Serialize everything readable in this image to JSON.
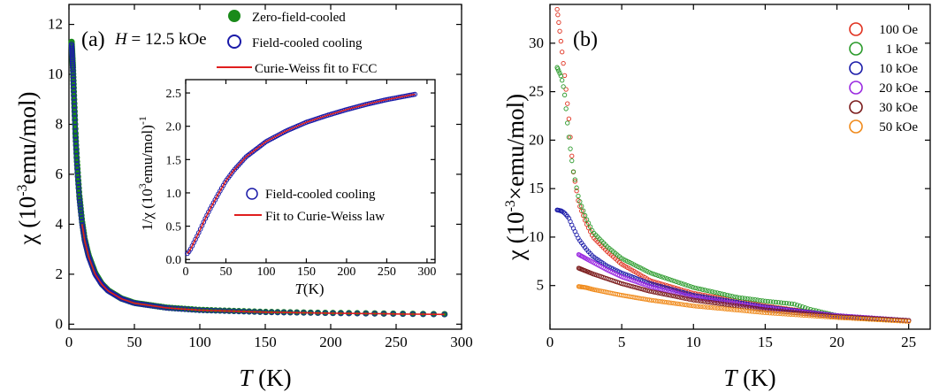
{
  "chart_data": [
    {
      "type": "scatter",
      "panel_label": "(a)",
      "annotation": "H = 12.5 kOe",
      "xlabel": "T (K)",
      "ylabel": "χ (10-3emu/mol)",
      "xlim": [
        0,
        300
      ],
      "ylim": [
        -0.2,
        12.8
      ],
      "xticks": [
        "0",
        "50",
        "100",
        "150",
        "200",
        "250",
        "300"
      ],
      "yticks": [
        "0",
        "2",
        "4",
        "6",
        "8",
        "10",
        "12"
      ],
      "legend_position": "top-right",
      "series": [
        {
          "name": "Zero-field-cooled",
          "marker": "filled-circle",
          "color": "#1a8a1a",
          "x": [
            2,
            3,
            4,
            5,
            6,
            7,
            8,
            10,
            12,
            15,
            20,
            25,
            30,
            40,
            50,
            75,
            100,
            150,
            200,
            250,
            287
          ],
          "y": [
            11.3,
            10.3,
            8.9,
            7.6,
            6.6,
            5.8,
            5.1,
            4.1,
            3.4,
            2.75,
            2.05,
            1.62,
            1.35,
            1.03,
            0.85,
            0.66,
            0.57,
            0.49,
            0.45,
            0.42,
            0.4
          ]
        },
        {
          "name": "Field-cooled cooling",
          "marker": "open-circle",
          "color": "#1a1aa8",
          "x": [
            2,
            3,
            4,
            5,
            6,
            7,
            8,
            10,
            12,
            15,
            20,
            25,
            30,
            40,
            50,
            75,
            100,
            150,
            200,
            250,
            287
          ],
          "y": [
            11.2,
            10.2,
            8.8,
            7.5,
            6.5,
            5.7,
            5.0,
            4.0,
            3.35,
            2.7,
            2.0,
            1.6,
            1.33,
            1.02,
            0.84,
            0.65,
            0.56,
            0.48,
            0.44,
            0.41,
            0.39
          ]
        },
        {
          "name": "Curie-Weiss fit to FCC",
          "marker": "line",
          "color": "#e01e1e",
          "x": [
            10,
            12,
            15,
            20,
            25,
            30,
            40,
            50,
            75,
            100,
            150,
            200,
            250,
            287
          ],
          "y": [
            4.0,
            3.35,
            2.7,
            2.0,
            1.6,
            1.33,
            1.02,
            0.84,
            0.65,
            0.56,
            0.48,
            0.44,
            0.41,
            0.39
          ]
        }
      ],
      "inset": {
        "type": "scatter",
        "xlabel": "T(K)",
        "ylabel": "1/χ (103emu/mol)-1",
        "xlim": [
          0,
          310
        ],
        "ylim": [
          -0.05,
          2.7
        ],
        "xticks": [
          "0",
          "50",
          "100",
          "150",
          "200",
          "250",
          "300"
        ],
        "yticks": [
          "0.0",
          "0.5",
          "1.0",
          "1.5",
          "2.0",
          "2.5"
        ],
        "legend_position": "bottom-right",
        "series": [
          {
            "name": "Field-cooled cooling",
            "marker": "open-circle",
            "color": "#1a1aa8",
            "x": [
              2,
              5,
              10,
              15,
              20,
              25,
              30,
              40,
              50,
              60,
              75,
              100,
              125,
              150,
              175,
              200,
              225,
              250,
              285
            ],
            "y": [
              0.09,
              0.13,
              0.25,
              0.37,
              0.5,
              0.63,
              0.75,
              0.97,
              1.18,
              1.34,
              1.54,
              1.77,
              1.93,
              2.06,
              2.16,
              2.25,
              2.33,
              2.4,
              2.48
            ]
          },
          {
            "name": "Fit to Curie-Weiss law",
            "marker": "line",
            "color": "#e01e1e",
            "x": [
              2,
              5,
              10,
              15,
              20,
              25,
              30,
              40,
              50,
              60,
              75,
              100,
              125,
              150,
              175,
              200,
              225,
              250,
              285
            ],
            "y": [
              0.09,
              0.13,
              0.25,
              0.37,
              0.5,
              0.63,
              0.75,
              0.97,
              1.18,
              1.34,
              1.54,
              1.77,
              1.93,
              2.06,
              2.16,
              2.25,
              2.33,
              2.4,
              2.48
            ]
          }
        ]
      }
    },
    {
      "type": "scatter",
      "panel_label": "(b)",
      "xlabel": "T (K)",
      "ylabel": "χ (10-3×emu/mol)",
      "xlim": [
        0,
        26.5
      ],
      "ylim": [
        0.5,
        34
      ],
      "xticks": [
        "0",
        "5",
        "10",
        "15",
        "20",
        "25"
      ],
      "yticks": [
        "5",
        "10",
        "15",
        "20",
        "25",
        "30"
      ],
      "legend_position": "top-right",
      "series": [
        {
          "name": "100 Oe",
          "marker": "open-circle",
          "color": "#e0301e",
          "x": [
            0.5,
            0.7,
            1.0,
            1.3,
            1.6,
            2.0,
            2.5,
            3.0,
            4.0,
            5.0,
            7.0,
            10.0,
            15.0,
            20.0,
            25.0
          ],
          "y": [
            33.5,
            31.0,
            27.0,
            22.5,
            17.0,
            13.5,
            11.5,
            10.0,
            8.5,
            7.2,
            5.5,
            4.2,
            2.9,
            1.9,
            1.4
          ]
        },
        {
          "name": "1 kOe",
          "marker": "open-circle",
          "color": "#2a9a2a",
          "x": [
            0.5,
            0.8,
            1.0,
            1.3,
            1.6,
            2.0,
            2.5,
            3.0,
            4.0,
            5.0,
            7.0,
            10.0,
            13.0,
            15.0,
            17.0,
            18.0,
            20.0,
            22.0,
            25.0
          ],
          "y": [
            27.5,
            26.5,
            25.0,
            20.5,
            17.0,
            14.0,
            12.0,
            10.5,
            9.0,
            7.8,
            6.3,
            4.8,
            3.8,
            3.4,
            3.1,
            2.6,
            1.9,
            1.6,
            1.4
          ]
        },
        {
          "name": "10 kOe",
          "marker": "open-circle",
          "color": "#1a1aa8",
          "x": [
            0.5,
            0.8,
            1.0,
            1.3,
            1.6,
            2.0,
            2.5,
            3.0,
            4.0,
            5.0,
            7.0,
            10.0,
            15.0,
            20.0,
            25.0
          ],
          "y": [
            12.8,
            12.7,
            12.5,
            12.0,
            11.0,
            9.8,
            8.8,
            8.0,
            7.0,
            6.3,
            5.2,
            4.0,
            2.8,
            1.9,
            1.4
          ]
        },
        {
          "name": "20 kOe",
          "marker": "open-circle",
          "color": "#9a2ae0",
          "x": [
            2.0,
            2.5,
            3.0,
            4.0,
            5.0,
            7.0,
            10.0,
            15.0,
            20.0,
            25.0
          ],
          "y": [
            8.2,
            7.8,
            7.4,
            6.6,
            5.9,
            4.9,
            3.8,
            2.7,
            1.9,
            1.4
          ]
        },
        {
          "name": "30 kOe",
          "marker": "open-circle",
          "color": "#7a1a1a",
          "x": [
            2.0,
            2.5,
            3.0,
            4.0,
            5.0,
            7.0,
            10.0,
            15.0,
            20.0,
            25.0
          ],
          "y": [
            6.8,
            6.5,
            6.2,
            5.7,
            5.2,
            4.4,
            3.5,
            2.5,
            1.8,
            1.4
          ]
        },
        {
          "name": "50 kOe",
          "marker": "open-circle",
          "color": "#f08a1a",
          "x": [
            2.0,
            2.5,
            3.0,
            4.0,
            5.0,
            7.0,
            10.0,
            15.0,
            20.0,
            25.0
          ],
          "y": [
            4.9,
            4.8,
            4.6,
            4.3,
            4.0,
            3.5,
            2.9,
            2.2,
            1.7,
            1.3
          ]
        }
      ]
    }
  ]
}
